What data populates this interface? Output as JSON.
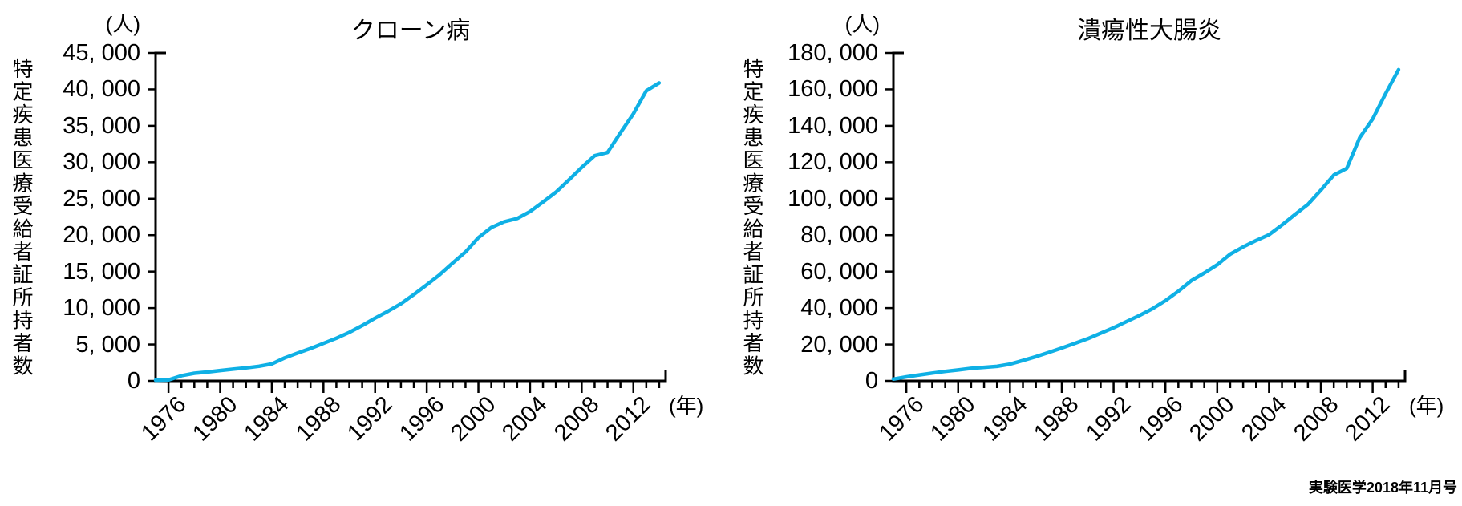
{
  "figure": {
    "source_credit": "実験医学2018年11月号"
  },
  "chart_data": [
    {
      "type": "line",
      "title": "クローン病",
      "y_unit_label": "(人)",
      "x_unit_label": "(年)",
      "y_axis_label": "特定疾患医療受給者証所持者数",
      "line_color": "#0fb0e5",
      "grid": false,
      "legend": "none",
      "ylim": [
        0,
        45000
      ],
      "ytick_step": 5000,
      "ytick_labels": [
        "0",
        "5, 000",
        "10, 000",
        "15, 000",
        "20, 000",
        "25, 000",
        "30, 000",
        "35, 000",
        "40, 000",
        "45, 000"
      ],
      "xlim_years": [
        1975,
        2014
      ],
      "xtick_minor_every_years": 1,
      "x_major_years": [
        1976,
        1980,
        1984,
        1988,
        1992,
        1996,
        2000,
        2004,
        2008,
        2012
      ],
      "xtick_labels": [
        "1976",
        "1980",
        "1984",
        "1988",
        "1992",
        "1996",
        "2000",
        "2004",
        "2008",
        "2012"
      ],
      "x": [
        1975,
        1976,
        1977,
        1978,
        1979,
        1980,
        1981,
        1982,
        1983,
        1984,
        1985,
        1986,
        1987,
        1988,
        1989,
        1990,
        1991,
        1992,
        1993,
        1994,
        1995,
        1996,
        1997,
        1998,
        1999,
        2000,
        2001,
        2002,
        2003,
        2004,
        2005,
        2006,
        2007,
        2008,
        2009,
        2010,
        2011,
        2012,
        2013,
        2014
      ],
      "values": [
        100,
        130,
        700,
        1040,
        1210,
        1420,
        1610,
        1780,
        2000,
        2320,
        3160,
        3820,
        4450,
        5150,
        5850,
        6660,
        7590,
        8610,
        9560,
        10580,
        11850,
        13180,
        14570,
        16150,
        17690,
        19650,
        21050,
        21840,
        22280,
        23240,
        24530,
        25890,
        27560,
        29290,
        30890,
        31330,
        34040,
        36640,
        39800,
        40890
      ]
    },
    {
      "type": "line",
      "title": "潰瘍性大腸炎",
      "y_unit_label": "(人)",
      "x_unit_label": "(年)",
      "y_axis_label": "特定疾患医療受給者証所持者数",
      "line_color": "#0fb0e5",
      "grid": false,
      "legend": "none",
      "ylim": [
        0,
        180000
      ],
      "ytick_step": 20000,
      "ytick_labels": [
        "0",
        "20, 000",
        "40, 000",
        "60, 000",
        "80, 000",
        "100, 000",
        "120, 000",
        "140, 000",
        "160, 000",
        "180, 000"
      ],
      "xlim_years": [
        1975,
        2014
      ],
      "xtick_minor_every_years": 1,
      "x_major_years": [
        1976,
        1980,
        1984,
        1988,
        1992,
        1996,
        2000,
        2004,
        2008,
        2012
      ],
      "xtick_labels": [
        "1976",
        "1980",
        "1984",
        "1988",
        "1992",
        "1996",
        "2000",
        "2004",
        "2008",
        "2012"
      ],
      "x": [
        1975,
        1976,
        1977,
        1978,
        1979,
        1980,
        1981,
        1982,
        1983,
        1984,
        1985,
        1986,
        1987,
        1988,
        1989,
        1990,
        1991,
        1992,
        1993,
        1994,
        1995,
        1996,
        1997,
        1998,
        1999,
        2000,
        2001,
        2002,
        2003,
        2004,
        2005,
        2006,
        2007,
        2008,
        2009,
        2010,
        2011,
        2012,
        2013,
        2014
      ],
      "values": [
        960,
        2220,
        3270,
        4270,
        5180,
        5990,
        6850,
        7450,
        7970,
        9180,
        11170,
        13280,
        15640,
        18060,
        20560,
        23170,
        26130,
        29190,
        32570,
        35920,
        39630,
        44050,
        49220,
        55030,
        59210,
        63720,
        69540,
        73560,
        77070,
        80250,
        85610,
        91320,
        96850,
        104720,
        112960,
        116620,
        133540,
        143730,
        157700,
        170780
      ]
    }
  ]
}
